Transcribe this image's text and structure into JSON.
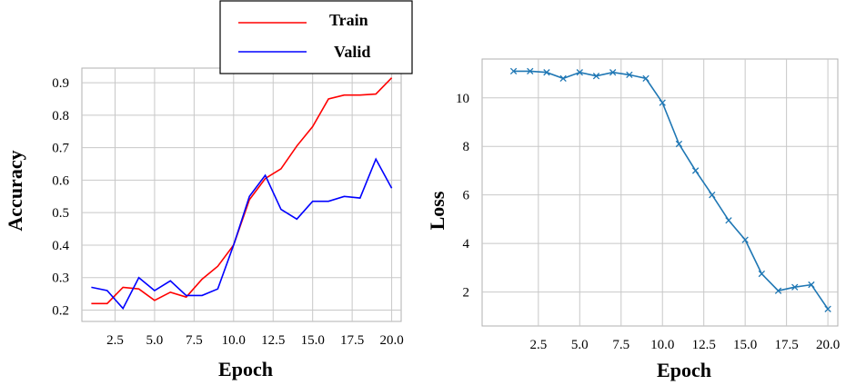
{
  "chart_data": [
    {
      "type": "line",
      "xlabel": "Epoch",
      "ylabel": "Accuracy",
      "xlim": [
        0.4,
        20.6
      ],
      "ylim": [
        0.165,
        0.945
      ],
      "xticks": [
        2.5,
        5.0,
        7.5,
        10.0,
        12.5,
        15.0,
        17.5,
        20.0
      ],
      "xtick_labels": [
        "2.5",
        "5.0",
        "7.5",
        "10.0",
        "12.5",
        "15.0",
        "17.5",
        "20.0"
      ],
      "yticks": [
        0.2,
        0.3,
        0.4,
        0.5,
        0.6,
        0.7,
        0.8,
        0.9
      ],
      "ytick_labels": [
        "0.2",
        "0.3",
        "0.4",
        "0.5",
        "0.6",
        "0.7",
        "0.8",
        "0.9"
      ],
      "grid": true,
      "legend": "above-top-right",
      "series": [
        {
          "name": "Train",
          "color": "#ff0000",
          "x": [
            1,
            2,
            3,
            4,
            5,
            6,
            7,
            8,
            9,
            10,
            11,
            12,
            13,
            14,
            15,
            16,
            17,
            18,
            19,
            20
          ],
          "values": [
            0.22,
            0.22,
            0.27,
            0.265,
            0.23,
            0.255,
            0.24,
            0.295,
            0.335,
            0.4,
            0.54,
            0.605,
            0.635,
            0.705,
            0.765,
            0.85,
            0.862,
            0.862,
            0.865,
            0.915
          ]
        },
        {
          "name": "Valid",
          "color": "#0000ff",
          "x": [
            1,
            2,
            3,
            4,
            5,
            6,
            7,
            8,
            9,
            10,
            11,
            12,
            13,
            14,
            15,
            16,
            17,
            18,
            19,
            20
          ],
          "values": [
            0.27,
            0.26,
            0.205,
            0.3,
            0.26,
            0.29,
            0.245,
            0.245,
            0.265,
            0.4,
            0.55,
            0.615,
            0.51,
            0.48,
            0.535,
            0.535,
            0.55,
            0.545,
            0.665,
            0.575
          ]
        }
      ]
    },
    {
      "type": "line",
      "xlabel": "Epoch",
      "ylabel": "Loss",
      "xlim": [
        -0.9,
        20.6
      ],
      "ylim": [
        0.6,
        11.6
      ],
      "xticks": [
        2.5,
        5.0,
        7.5,
        10.0,
        12.5,
        15.0,
        17.5,
        20.0
      ],
      "xtick_labels": [
        "2.5",
        "5.0",
        "7.5",
        "10.0",
        "12.5",
        "15.0",
        "17.5",
        "20.0"
      ],
      "yticks": [
        2,
        4,
        6,
        8,
        10
      ],
      "ytick_labels": [
        "2",
        "4",
        "6",
        "8",
        "10"
      ],
      "grid": true,
      "series": [
        {
          "color": "#1f77b4",
          "marker": "x",
          "x": [
            1,
            2,
            3,
            4,
            5,
            6,
            7,
            8,
            9,
            10,
            11,
            12,
            13,
            14,
            15,
            16,
            17,
            18,
            19,
            20
          ],
          "values": [
            11.1,
            11.1,
            11.05,
            10.8,
            11.05,
            10.9,
            11.05,
            10.95,
            10.8,
            9.8,
            8.1,
            7.0,
            6.0,
            4.95,
            4.15,
            2.75,
            2.05,
            2.2,
            2.3,
            1.3
          ]
        }
      ]
    }
  ]
}
